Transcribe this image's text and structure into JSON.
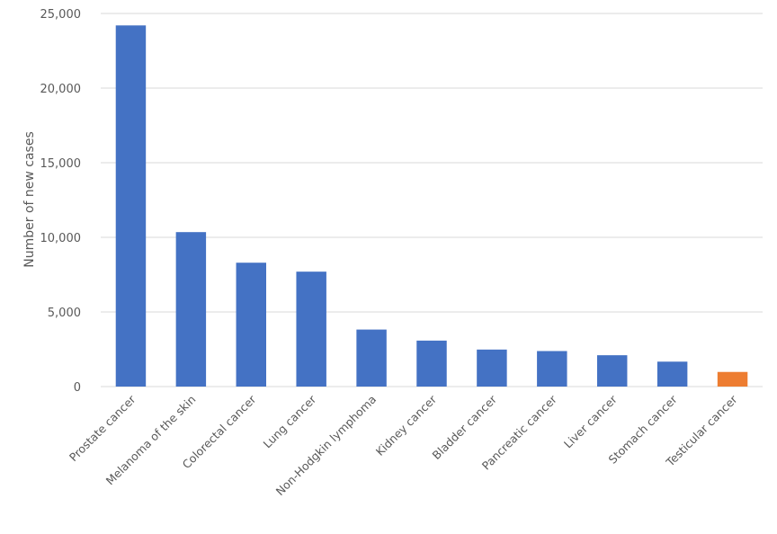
{
  "chart_data": {
    "type": "bar",
    "title": "",
    "xlabel": "",
    "ylabel": "Number of new cases",
    "ylim": [
      0,
      25000
    ],
    "yticks": [
      0,
      5000,
      10000,
      15000,
      20000,
      25000
    ],
    "ytick_labels": [
      "0",
      "5,000",
      "10,000",
      "15,000",
      "20,000",
      "25,000"
    ],
    "categories": [
      "Prostate cancer",
      "Melanoma of the skin",
      "Colorectal cancer",
      "Lung cancer",
      "Non-Hodgkin lymphoma",
      "Kidney cancer",
      "Bladder cancer",
      "Pancreatic cancer",
      "Liver cancer",
      "Stomach cancer",
      "Testicular cancer"
    ],
    "values": [
      24200,
      10350,
      8300,
      7700,
      3820,
      3080,
      2480,
      2380,
      2100,
      1670,
      980
    ],
    "highlight_category": "Testicular cancer",
    "colors": {
      "bar": "#4472C4",
      "highlight": "#ED7D31"
    },
    "grid": true,
    "legend": "none"
  }
}
